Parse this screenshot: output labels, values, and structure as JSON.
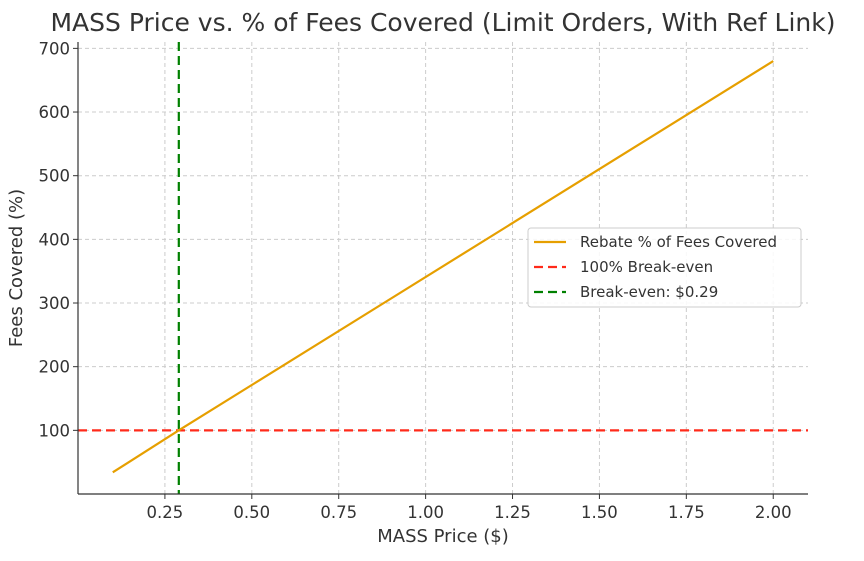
{
  "chart_data": {
    "type": "line",
    "title": "MASS Price vs. % of Fees Covered (Limit Orders, With Ref Link)",
    "xlabel": "MASS Price ($)",
    "ylabel": "Fees Covered (%)",
    "xlim": [
      0.0,
      2.1
    ],
    "ylim": [
      0,
      710
    ],
    "x_ticks": [
      0.25,
      0.5,
      0.75,
      1.0,
      1.25,
      1.5,
      1.75,
      2.0
    ],
    "x_tick_labels": [
      "0.25",
      "0.50",
      "0.75",
      "1.00",
      "1.25",
      "1.50",
      "1.75",
      "2.00"
    ],
    "y_ticks": [
      100,
      200,
      300,
      400,
      500,
      600,
      700
    ],
    "y_tick_labels": [
      "100",
      "200",
      "300",
      "400",
      "500",
      "600",
      "700"
    ],
    "grid": true,
    "legend_position": "center-right",
    "series": [
      {
        "name": "Rebate % of Fees Covered",
        "color": "#E69F00",
        "style": "solid",
        "x": [
          0.1,
          0.29,
          2.0
        ],
        "y": [
          34,
          100,
          680
        ]
      }
    ],
    "reference_lines": [
      {
        "name": "100% Break-even",
        "orientation": "horizontal",
        "value": 100,
        "color": "#FF2A1A",
        "style": "dashed"
      },
      {
        "name": "Break-even: $0.29",
        "orientation": "vertical",
        "value": 0.29,
        "color": "#008000",
        "style": "dashed"
      }
    ]
  }
}
